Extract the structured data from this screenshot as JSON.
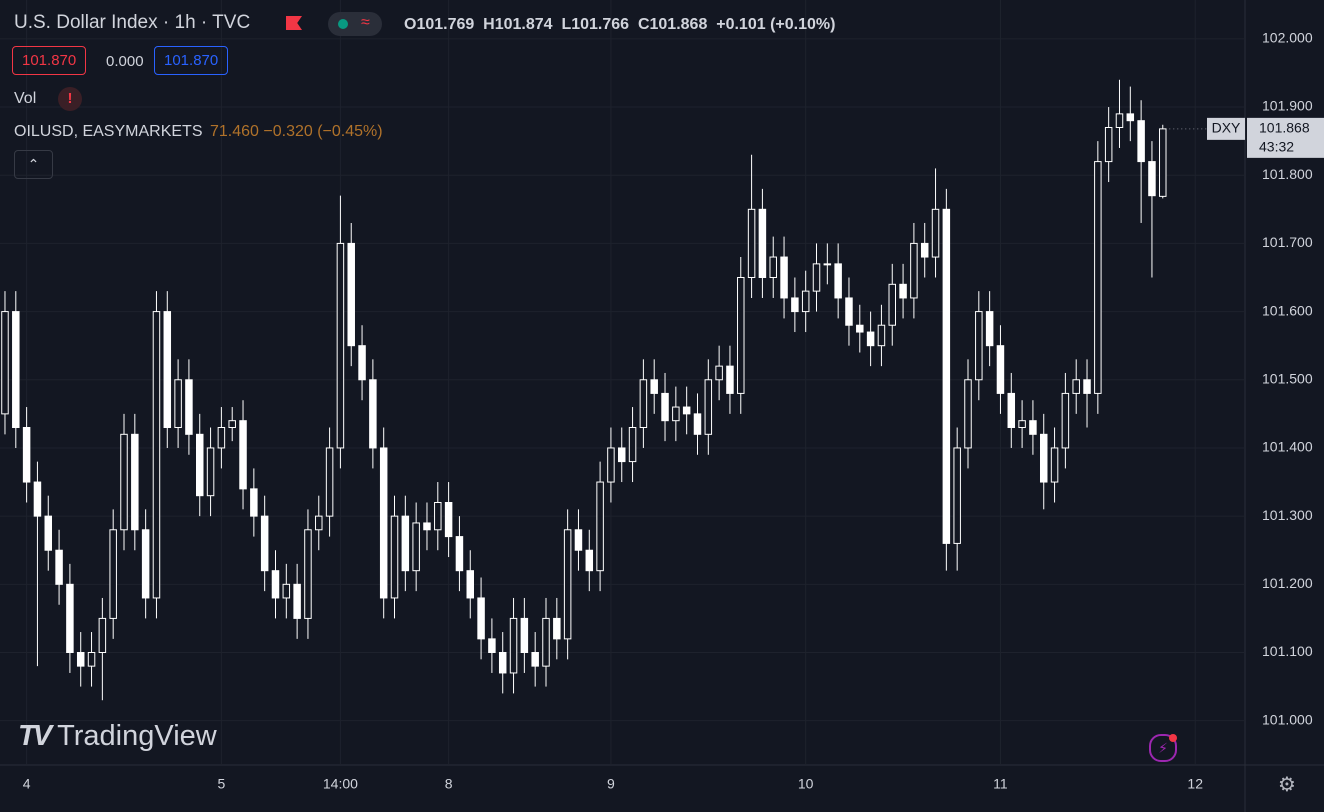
{
  "header": {
    "title": "U.S. Dollar Index · 1h · TVC",
    "open": "O101.769",
    "high": "H101.874",
    "low": "L101.766",
    "close": "C101.868",
    "change": "+0.101 (+0.10%)",
    "sell": "101.870",
    "spread": "0.000",
    "buy": "101.870",
    "vol": "Vol",
    "compare": "OILUSD, EASYMARKETS",
    "compare_values": "71.460 −0.320 (−0.45%)",
    "logo": "TradingView"
  },
  "price_tag": {
    "symbol": "DXY",
    "price": "101.868",
    "countdown": "43:32"
  },
  "chart_data": {
    "type": "candlestick",
    "up_color": "#131722",
    "down_color": "#ffffff",
    "wick_color": "#ffffff",
    "ylim": [
      100.935,
      102.057
    ],
    "yticks": [
      {
        "value": 101,
        "label": "101.000"
      },
      {
        "value": 101.1,
        "label": "101.100"
      },
      {
        "value": 101.2,
        "label": "101.200"
      },
      {
        "value": 101.3,
        "label": "101.300"
      },
      {
        "value": 101.4,
        "label": "101.400"
      },
      {
        "value": 101.5,
        "label": "101.500"
      },
      {
        "value": 101.6,
        "label": "101.600"
      },
      {
        "value": 101.7,
        "label": "101.700"
      },
      {
        "value": 101.8,
        "label": "101.800"
      },
      {
        "value": 101.9,
        "label": "101.900"
      },
      {
        "value": 102,
        "label": "102.000"
      }
    ],
    "xlim": [
      -0.46,
      114.6
    ],
    "xticks": [
      {
        "value": 2,
        "label": "4"
      },
      {
        "value": 20,
        "label": "5"
      },
      {
        "value": 31,
        "label": "14:00"
      },
      {
        "value": 41,
        "label": "8"
      },
      {
        "value": 56,
        "label": "9"
      },
      {
        "value": 74,
        "label": "10"
      },
      {
        "value": 92,
        "label": "11"
      },
      {
        "value": 110,
        "label": "12"
      }
    ],
    "grid": true,
    "open": [
      101.45,
      101.6,
      101.43,
      101.35,
      101.3,
      101.25,
      101.2,
      101.1,
      101.08,
      101.1,
      101.15,
      101.28,
      101.42,
      101.28,
      101.18,
      101.6,
      101.43,
      101.5,
      101.42,
      101.33,
      101.4,
      101.43,
      101.44,
      101.34,
      101.3,
      101.22,
      101.18,
      101.2,
      101.15,
      101.28,
      101.3,
      101.4,
      101.7,
      101.55,
      101.5,
      101.4,
      101.18,
      101.3,
      101.22,
      101.29,
      101.28,
      101.32,
      101.27,
      101.22,
      101.18,
      101.12,
      101.1,
      101.07,
      101.15,
      101.1,
      101.08,
      101.15,
      101.12,
      101.28,
      101.25,
      101.22,
      101.35,
      101.4,
      101.38,
      101.43,
      101.5,
      101.48,
      101.44,
      101.46,
      101.45,
      101.42,
      101.5,
      101.52,
      101.48,
      101.65,
      101.75,
      101.65,
      101.68,
      101.62,
      101.6,
      101.63,
      101.67,
      101.67,
      101.62,
      101.58,
      101.57,
      101.55,
      101.58,
      101.64,
      101.62,
      101.7,
      101.68,
      101.75,
      101.26,
      101.4,
      101.5,
      101.6,
      101.55,
      101.48,
      101.43,
      101.44,
      101.42,
      101.35,
      101.4,
      101.48,
      101.5,
      101.48,
      101.82,
      101.87,
      101.89,
      101.88,
      101.82,
      101.769
    ],
    "high": [
      101.63,
      101.63,
      101.46,
      101.38,
      101.33,
      101.28,
      101.23,
      101.13,
      101.13,
      101.18,
      101.31,
      101.45,
      101.45,
      101.31,
      101.63,
      101.63,
      101.53,
      101.53,
      101.45,
      101.43,
      101.46,
      101.46,
      101.47,
      101.37,
      101.33,
      101.25,
      101.23,
      101.23,
      101.31,
      101.33,
      101.43,
      101.77,
      101.73,
      101.58,
      101.53,
      101.43,
      101.33,
      101.33,
      101.32,
      101.32,
      101.35,
      101.35,
      101.3,
      101.25,
      101.21,
      101.15,
      101.13,
      101.18,
      101.18,
      101.13,
      101.18,
      101.18,
      101.31,
      101.31,
      101.28,
      101.38,
      101.43,
      101.43,
      101.46,
      101.53,
      101.53,
      101.51,
      101.49,
      101.49,
      101.48,
      101.53,
      101.55,
      101.55,
      101.68,
      101.83,
      101.78,
      101.71,
      101.71,
      101.65,
      101.66,
      101.7,
      101.7,
      101.7,
      101.65,
      101.61,
      101.6,
      101.61,
      101.67,
      101.67,
      101.73,
      101.73,
      101.81,
      101.78,
      101.43,
      101.53,
      101.63,
      101.63,
      101.58,
      101.51,
      101.47,
      101.47,
      101.45,
      101.43,
      101.51,
      101.53,
      101.53,
      101.85,
      101.9,
      101.94,
      101.93,
      101.91,
      101.85,
      101.874
    ],
    "low": [
      101.42,
      101.4,
      101.32,
      101.08,
      101.22,
      101.17,
      101.07,
      101.05,
      101.05,
      101.03,
      101.12,
      101.25,
      101.25,
      101.15,
      101.15,
      101.4,
      101.4,
      101.39,
      101.3,
      101.3,
      101.37,
      101.41,
      101.31,
      101.27,
      101.19,
      101.15,
      101.15,
      101.12,
      101.12,
      101.25,
      101.27,
      101.37,
      101.52,
      101.47,
      101.37,
      101.15,
      101.15,
      101.19,
      101.19,
      101.25,
      101.25,
      101.24,
      101.19,
      101.15,
      101.09,
      101.07,
      101.04,
      101.04,
      101.07,
      101.05,
      101.05,
      101.09,
      101.09,
      101.22,
      101.19,
      101.19,
      101.32,
      101.35,
      101.35,
      101.4,
      101.45,
      101.41,
      101.41,
      101.42,
      101.39,
      101.39,
      101.47,
      101.45,
      101.45,
      101.62,
      101.62,
      101.62,
      101.59,
      101.57,
      101.57,
      101.6,
      101.64,
      101.59,
      101.55,
      101.54,
      101.52,
      101.52,
      101.55,
      101.59,
      101.59,
      101.65,
      101.65,
      101.22,
      101.22,
      101.37,
      101.47,
      101.52,
      101.45,
      101.4,
      101.4,
      101.39,
      101.31,
      101.32,
      101.37,
      101.45,
      101.43,
      101.45,
      101.79,
      101.84,
      101.85,
      101.73,
      101.65,
      101.766
    ],
    "close": [
      101.6,
      101.43,
      101.35,
      101.3,
      101.25,
      101.2,
      101.1,
      101.08,
      101.1,
      101.15,
      101.28,
      101.42,
      101.28,
      101.18,
      101.6,
      101.43,
      101.5,
      101.42,
      101.33,
      101.4,
      101.43,
      101.44,
      101.34,
      101.3,
      101.22,
      101.18,
      101.2,
      101.15,
      101.28,
      101.3,
      101.4,
      101.7,
      101.55,
      101.5,
      101.4,
      101.18,
      101.3,
      101.22,
      101.29,
      101.28,
      101.32,
      101.27,
      101.22,
      101.18,
      101.12,
      101.1,
      101.07,
      101.15,
      101.1,
      101.08,
      101.15,
      101.12,
      101.28,
      101.25,
      101.22,
      101.35,
      101.4,
      101.38,
      101.43,
      101.5,
      101.48,
      101.44,
      101.46,
      101.45,
      101.42,
      101.5,
      101.52,
      101.48,
      101.65,
      101.75,
      101.65,
      101.68,
      101.62,
      101.6,
      101.63,
      101.67,
      101.67,
      101.62,
      101.58,
      101.57,
      101.55,
      101.58,
      101.64,
      101.62,
      101.7,
      101.68,
      101.75,
      101.26,
      101.4,
      101.5,
      101.6,
      101.55,
      101.48,
      101.43,
      101.44,
      101.42,
      101.35,
      101.4,
      101.48,
      101.5,
      101.48,
      101.82,
      101.87,
      101.89,
      101.88,
      101.82,
      101.77,
      101.868
    ]
  }
}
